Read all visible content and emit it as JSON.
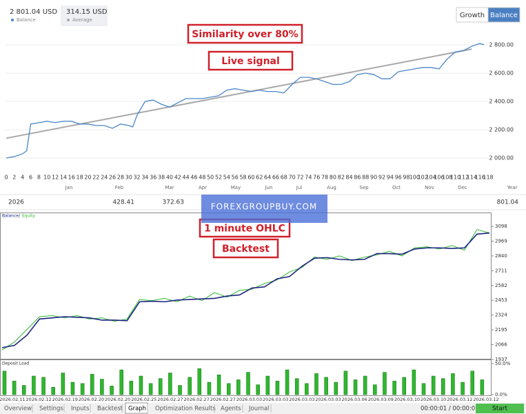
{
  "header": {
    "balance": {
      "value": "2 801.04 USD",
      "label": "Balance"
    },
    "average": {
      "value": "314.15 USD",
      "label": "Average"
    }
  },
  "toggle": {
    "options": [
      "Growth",
      "Balance"
    ],
    "active": 1
  },
  "annotations": [
    "Similarity over 80%",
    "Live signal",
    "1 minute OHLC",
    "Backtest"
  ],
  "watermark": "FOREXGROUPBUY.COM",
  "signal_chart": {
    "type": "line",
    "xlim": [
      0,
      118
    ],
    "ylim": [
      2000,
      2800
    ],
    "xticks": [
      0,
      2,
      4,
      6,
      8,
      10,
      12,
      14,
      16,
      18,
      20,
      22,
      24,
      26,
      28,
      30,
      32,
      34,
      36,
      38,
      40,
      42,
      44,
      46,
      48,
      50,
      52,
      54,
      56,
      58,
      60,
      62,
      64,
      66,
      68,
      70,
      72,
      74,
      76,
      78,
      80,
      82,
      84,
      86,
      88,
      90,
      92,
      94,
      96,
      98,
      100,
      102,
      104,
      106,
      108,
      110,
      112,
      114,
      116,
      118
    ],
    "yticks": [
      {
        "value": 2000,
        "label": "2 000.00"
      },
      {
        "value": 2200,
        "label": "2 200.00"
      },
      {
        "value": 2400,
        "label": "2 400.00"
      },
      {
        "value": 2600,
        "label": "2 600.00"
      },
      {
        "value": 2800,
        "label": "2 800.00"
      }
    ],
    "grid": true,
    "months": [
      "Jan",
      "Feb",
      "Mar",
      "Apr",
      "May",
      "Jun",
      "Jul",
      "Aug",
      "Sep",
      "Oct",
      "Nov",
      "Dec"
    ],
    "year_label": "Year",
    "series": [
      {
        "name": "Balance",
        "color": "#4a86c8",
        "x": [
          0,
          2,
          4,
          5,
          6,
          8,
          10,
          12,
          14,
          16,
          18,
          20,
          22,
          24,
          26,
          28,
          30,
          31,
          32,
          34,
          36,
          38,
          40,
          42,
          44,
          46,
          48,
          50,
          52,
          54,
          56,
          58,
          60,
          62,
          64,
          66,
          68,
          70,
          72,
          74,
          76,
          78,
          80,
          82,
          84,
          86,
          88,
          90,
          92,
          94,
          96,
          98,
          100,
          102,
          104,
          106,
          108,
          110,
          112,
          114,
          116,
          117
        ],
        "values": [
          2000,
          2010,
          2030,
          2050,
          2240,
          2250,
          2260,
          2250,
          2260,
          2260,
          2240,
          2240,
          2230,
          2230,
          2210,
          2240,
          2230,
          2220,
          2300,
          2400,
          2410,
          2380,
          2360,
          2390,
          2420,
          2420,
          2420,
          2430,
          2440,
          2480,
          2490,
          2480,
          2470,
          2480,
          2470,
          2470,
          2460,
          2520,
          2570,
          2570,
          2560,
          2540,
          2520,
          2520,
          2540,
          2590,
          2600,
          2590,
          2560,
          2560,
          2610,
          2620,
          2630,
          2640,
          2640,
          2630,
          2700,
          2750,
          2760,
          2790,
          2810,
          2800
        ]
      },
      {
        "name": "Average",
        "color": "#a8a8a8",
        "x": [
          0,
          114
        ],
        "values": [
          2140,
          2770
        ]
      }
    ]
  },
  "year_row": {
    "year": "2026",
    "values": [
      428.41,
      372.63
    ],
    "total": 801.04
  },
  "backtest_chart": {
    "type": "line",
    "ylim": [
      1937,
      3098
    ],
    "yticks": [
      3098,
      2969,
      2840,
      2711,
      2582,
      2453,
      2324,
      2195,
      2066,
      1937
    ],
    "dates": [
      "2026.02.11",
      "2026.02.12",
      "2026.02.19",
      "2026.02.20",
      "2026.02.20",
      "2026.02.25",
      "2026.02.27",
      "2026.02.27",
      "2026.02.27",
      "2026.03.03",
      "2026.03.03",
      "2026.03.03",
      "2026.03.03",
      "2026.03.06",
      "2026.03.09",
      "2026.03.10",
      "2026.03.10",
      "2026.03.12",
      "2026.03.12"
    ],
    "series": [
      {
        "name": "Balance",
        "color": "#1a237e",
        "values": [
          2040,
          2060,
          2150,
          2290,
          2300,
          2310,
          2305,
          2300,
          2280,
          2280,
          2275,
          2440,
          2445,
          2440,
          2455,
          2460,
          2465,
          2470,
          2490,
          2500,
          2560,
          2570,
          2640,
          2660,
          2750,
          2820,
          2825,
          2810,
          2805,
          2810,
          2860,
          2860,
          2855,
          2900,
          2910,
          2910,
          2905,
          2910,
          3030,
          3040
        ]
      },
      {
        "name": "Equity",
        "color": "#2eb82e",
        "values": [
          2020,
          2090,
          2200,
          2310,
          2320,
          2300,
          2320,
          2290,
          2300,
          2270,
          2290,
          2460,
          2450,
          2470,
          2440,
          2490,
          2450,
          2520,
          2480,
          2540,
          2550,
          2600,
          2630,
          2700,
          2740,
          2830,
          2810,
          2840,
          2800,
          2830,
          2850,
          2880,
          2840,
          2910,
          2920,
          2900,
          2930,
          2890,
          3070,
          3040
        ]
      }
    ]
  },
  "load_chart": {
    "type": "bar",
    "title": "Deposit Load",
    "color": "#2eb82e",
    "ylim": [
      0,
      50
    ],
    "yticks": [
      {
        "value": 50,
        "label": "50.0%"
      },
      {
        "value": 0,
        "label": "0.0%"
      }
    ],
    "values": [
      38,
      22,
      15,
      30,
      28,
      12,
      35,
      20,
      18,
      33,
      25,
      14,
      40,
      22,
      30,
      18,
      26,
      35,
      15,
      28,
      42,
      20,
      32,
      18,
      24,
      36,
      16,
      30,
      22,
      40,
      26,
      18,
      34,
      28,
      20,
      38,
      24,
      30,
      16,
      36,
      22,
      28,
      40,
      18,
      30,
      26,
      34,
      20,
      38,
      24
    ]
  },
  "tabs": {
    "items": [
      "Overview",
      "Settings",
      "Inputs",
      "Backtest",
      "Graph",
      "Optimization Results",
      "Agents",
      "Journal"
    ],
    "active": 4
  },
  "status": {
    "time": "00:00:01 / 00:00:01",
    "button": "Start"
  }
}
